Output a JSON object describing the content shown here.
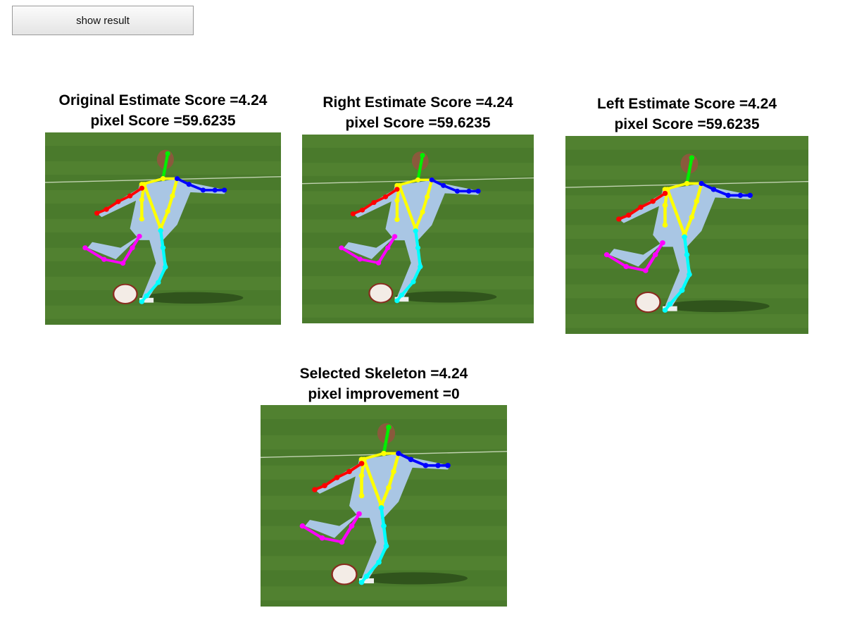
{
  "toolbar": {
    "show_result_label": "show result"
  },
  "panels": [
    {
      "id": "original",
      "title_line1": "Original Estimate Score =4.24",
      "title_line2": "pixel Score =59.6235"
    },
    {
      "id": "right",
      "title_line1": "Right Estimate Score =4.24",
      "title_line2": "pixel Score =59.6235"
    },
    {
      "id": "left",
      "title_line1": "Left Estimate Score =4.24",
      "title_line2": "pixel Score =59.6235"
    },
    {
      "id": "selected",
      "title_line1": "Selected Skeleton =4.24",
      "title_line2": "pixel improvement =0"
    }
  ],
  "skeleton_colors": {
    "head": "#00ee00",
    "torso": "#ffff00",
    "right_arm": "#ff0000",
    "left_arm": "#0000ff",
    "right_leg": "#ff00ff",
    "left_leg": "#00ffff"
  },
  "scene_colors": {
    "grass": "#4a7a2c",
    "grass_light": "#5f8f3a",
    "jersey": "#a9c6e4",
    "skin": "#8a5a3c",
    "ball": "#f3ece6"
  }
}
